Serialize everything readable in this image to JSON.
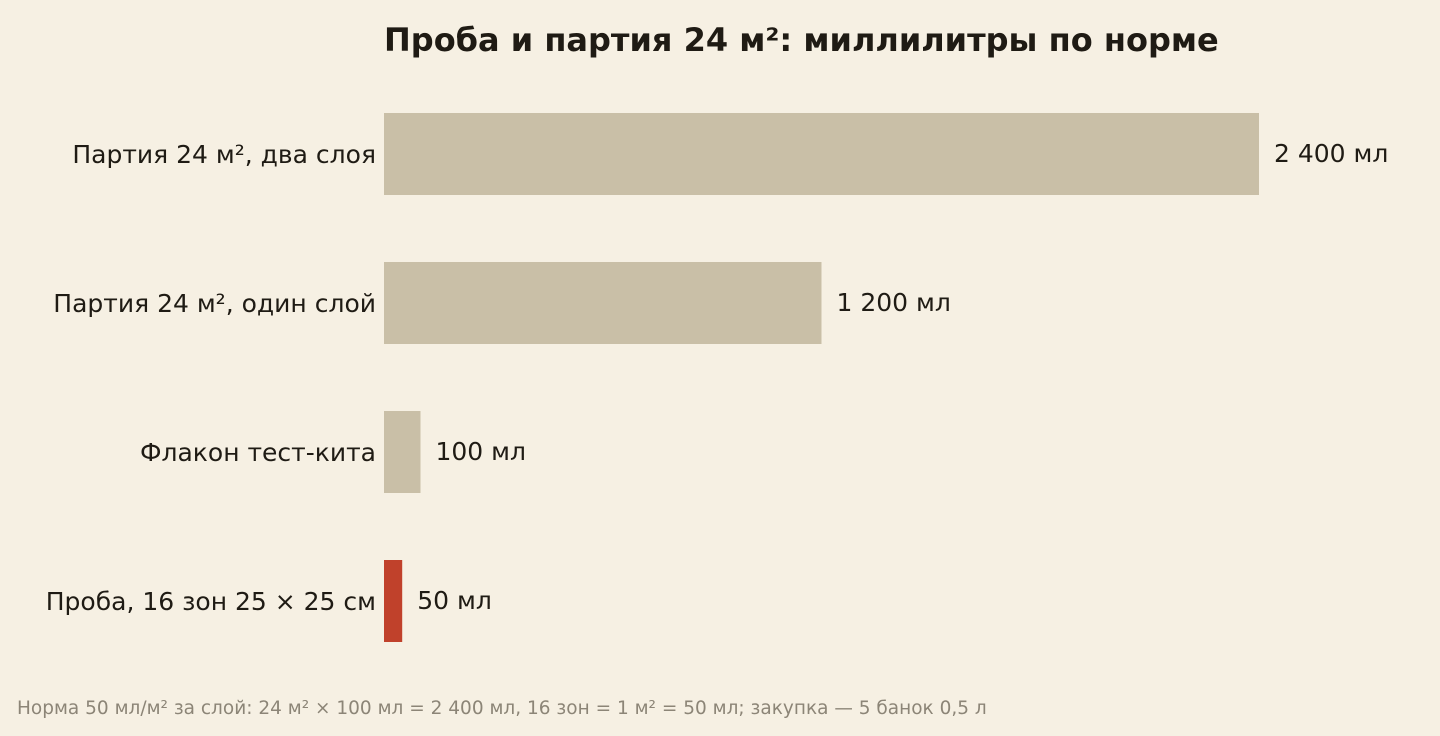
{
  "colors": {
    "background": "#f6f0e3",
    "bar": "#c9bfa7",
    "highlight": "#c0412b",
    "text": "#1f1b14",
    "note": "#8c8577"
  },
  "chart_data": {
    "type": "bar",
    "orientation": "horizontal",
    "title": "Проба и партия 24 м²: миллилитры по норме",
    "xlabel": "",
    "ylabel": "",
    "xlim": [
      0,
      2400
    ],
    "grid": false,
    "unit": "мл",
    "categories": [
      "Партия 24 м², два слоя",
      "Партия 24 м², один слой",
      "Флакон тест-кита",
      "Проба, 16 зон 25 × 25 см"
    ],
    "values": [
      2400,
      1200,
      100,
      50
    ],
    "value_labels": [
      "2 400 мл",
      "1 200 мл",
      "100 мл",
      "50 мл"
    ],
    "highlight": [
      false,
      false,
      false,
      true
    ],
    "footnote": "Норма 50 мл/м² за слой: 24 м² × 100 мл = 2 400 мл, 16 зон = 1 м² = 50 мл; закупка — 5 банок 0,5 л"
  }
}
